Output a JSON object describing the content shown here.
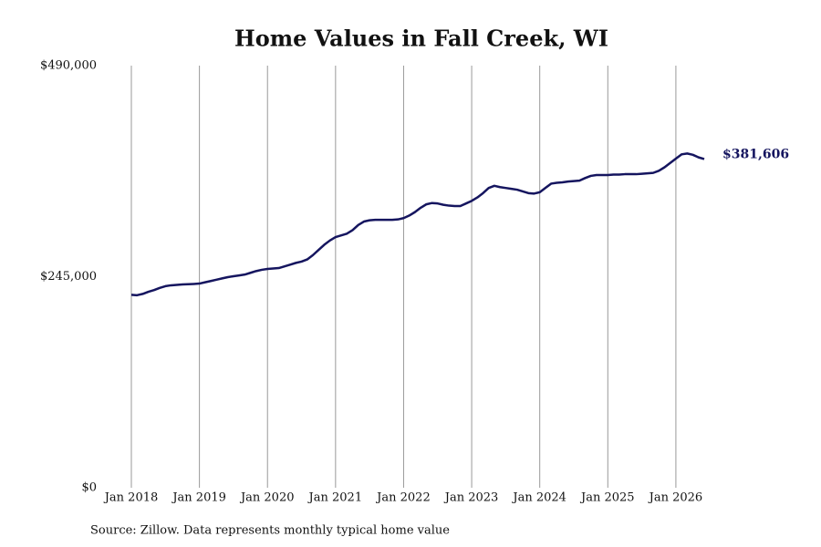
{
  "chart_data": {
    "type": "line",
    "title": "Home Values in Fall Creek, WI",
    "source": "Source: Zillow. Data represents monthly typical home value",
    "x": [
      "2018-01",
      "2018-02",
      "2018-03",
      "2018-04",
      "2018-05",
      "2018-06",
      "2018-07",
      "2018-08",
      "2018-09",
      "2018-10",
      "2018-11",
      "2018-12",
      "2019-01",
      "2019-02",
      "2019-03",
      "2019-04",
      "2019-05",
      "2019-06",
      "2019-07",
      "2019-08",
      "2019-09",
      "2019-10",
      "2019-11",
      "2019-12",
      "2020-01",
      "2020-02",
      "2020-03",
      "2020-04",
      "2020-05",
      "2020-06",
      "2020-07",
      "2020-08",
      "2020-09",
      "2020-10",
      "2020-11",
      "2020-12",
      "2021-01",
      "2021-02",
      "2021-03",
      "2021-04",
      "2021-05",
      "2021-06",
      "2021-07",
      "2021-08",
      "2021-09",
      "2021-10",
      "2021-11",
      "2021-12",
      "2022-01",
      "2022-02",
      "2022-03",
      "2022-04",
      "2022-05",
      "2022-06",
      "2022-07",
      "2022-08",
      "2022-09",
      "2022-10",
      "2022-11",
      "2022-12",
      "2023-01",
      "2023-02",
      "2023-03",
      "2023-04",
      "2023-05",
      "2023-06",
      "2023-07",
      "2023-08",
      "2023-09",
      "2023-10",
      "2023-11",
      "2023-12",
      "2024-01",
      "2024-02",
      "2024-03",
      "2024-04",
      "2024-05",
      "2024-06",
      "2024-07",
      "2024-08",
      "2024-09",
      "2024-10",
      "2024-11",
      "2024-12",
      "2025-01",
      "2025-02",
      "2025-03",
      "2025-04",
      "2025-05",
      "2025-06",
      "2025-07",
      "2025-08",
      "2025-09",
      "2025-10",
      "2025-11",
      "2025-12",
      "2026-01",
      "2026-02",
      "2026-03",
      "2026-04",
      "2026-05",
      "2026-06"
    ],
    "series": [
      {
        "name": "Home Values",
        "color": "#15155f",
        "values": [
          224000,
          223500,
          225000,
          227500,
          229500,
          232000,
          234000,
          235000,
          235500,
          236000,
          236300,
          236600,
          237000,
          238500,
          240000,
          241500,
          243000,
          244500,
          245500,
          246500,
          247500,
          249500,
          251500,
          253000,
          254000,
          254500,
          255000,
          257000,
          259000,
          261000,
          262500,
          265000,
          270000,
          276000,
          282000,
          287000,
          291000,
          293000,
          295000,
          299000,
          305000,
          309000,
          310500,
          311000,
          311000,
          311000,
          311000,
          311500,
          313000,
          316000,
          320000,
          325000,
          329000,
          330500,
          330000,
          328500,
          327500,
          327000,
          327000,
          330000,
          333000,
          337000,
          342000,
          348000,
          350500,
          349000,
          348000,
          347000,
          346000,
          344000,
          342000,
          341500,
          343000,
          348000,
          353000,
          354000,
          354500,
          355500,
          356000,
          356500,
          359500,
          362000,
          363000,
          363000,
          363000,
          363500,
          363500,
          364000,
          364000,
          364000,
          364500,
          365000,
          365500,
          368000,
          372000,
          377000,
          382000,
          387000,
          388000,
          386500,
          383500,
          381606
        ],
        "value_labels": [
          null,
          null,
          null,
          null,
          null,
          null,
          null,
          null,
          null,
          null,
          null,
          null,
          null,
          null,
          null,
          null,
          null,
          null,
          null,
          null,
          null,
          null,
          null,
          null,
          null,
          null,
          null,
          null,
          null,
          null,
          null,
          null,
          null,
          null,
          null,
          null,
          null,
          null,
          null,
          null,
          null,
          null,
          null,
          null,
          null,
          null,
          null,
          null,
          null,
          null,
          null,
          null,
          null,
          null,
          null,
          null,
          null,
          null,
          null,
          null,
          null,
          null,
          null,
          null,
          null,
          null,
          null,
          null,
          null,
          null,
          null,
          null,
          null,
          null,
          null,
          null,
          null,
          null,
          null,
          null,
          null,
          null,
          null,
          null,
          null,
          null,
          null,
          null,
          null,
          null,
          null,
          null,
          null,
          null,
          null,
          null,
          null,
          null,
          null,
          null,
          null,
          "$381,606"
        ]
      }
    ],
    "xlim": [
      "2018-01",
      "2026-06"
    ],
    "xticks": [
      {
        "value": "2018-01",
        "label": "Jan 2018"
      },
      {
        "value": "2019-01",
        "label": "Jan 2019"
      },
      {
        "value": "2020-01",
        "label": "Jan 2020"
      },
      {
        "value": "2021-01",
        "label": "Jan 2021"
      },
      {
        "value": "2022-01",
        "label": "Jan 2022"
      },
      {
        "value": "2023-01",
        "label": "Jan 2023"
      },
      {
        "value": "2024-01",
        "label": "Jan 2024"
      },
      {
        "value": "2025-01",
        "label": "Jan 2025"
      },
      {
        "value": "2026-01",
        "label": "Jan 2026"
      }
    ],
    "ylim": [
      0,
      490000
    ],
    "yticks": [
      {
        "value": 0,
        "label": "$0"
      },
      {
        "value": 245000,
        "label": "$245,000"
      },
      {
        "value": 490000,
        "label": "$490,000"
      }
    ],
    "grid": "x"
  }
}
